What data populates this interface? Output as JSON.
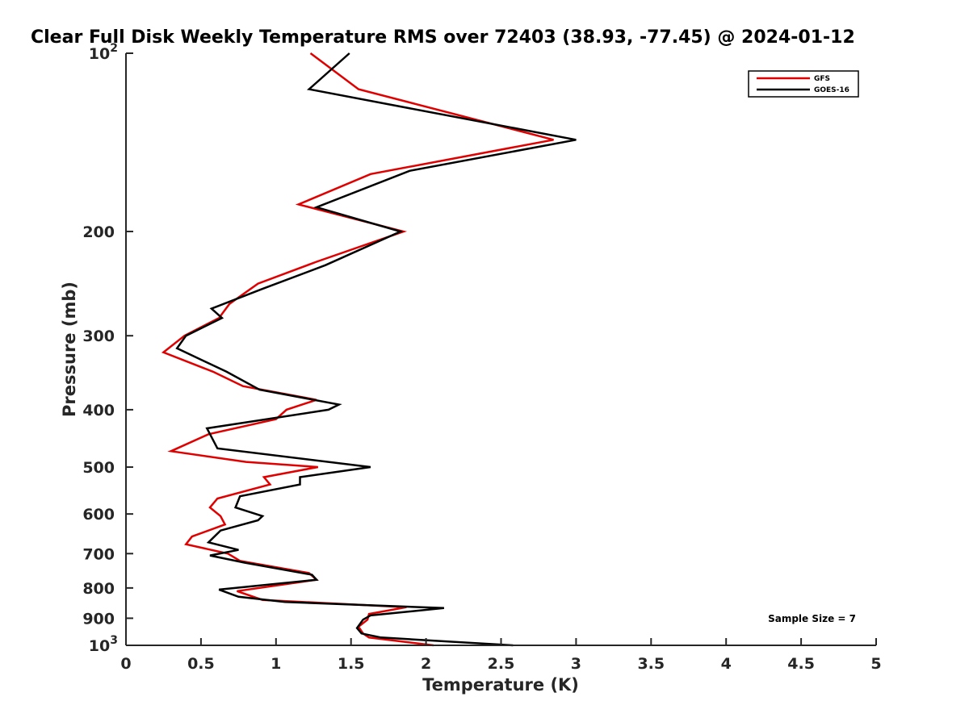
{
  "chart_data": {
    "type": "line",
    "title": "Clear Full Disk Weekly Temperature RMS over 72403 (38.93, -77.45) @ 2024-01-12",
    "xlabel": "Temperature (K)",
    "ylabel": "Pressure (mb)",
    "xlim": [
      0,
      5
    ],
    "ylim": [
      100,
      1000
    ],
    "y_scale": "log",
    "y_reversed": true,
    "grid": false,
    "legend_position": "top-right",
    "x_ticks": [
      {
        "value": 0,
        "label": "0"
      },
      {
        "value": 0.5,
        "label": "0.5"
      },
      {
        "value": 1,
        "label": "1"
      },
      {
        "value": 1.5,
        "label": "1.5"
      },
      {
        "value": 2,
        "label": "2"
      },
      {
        "value": 2.5,
        "label": "2.5"
      },
      {
        "value": 3,
        "label": "3"
      },
      {
        "value": 3.5,
        "label": "3.5"
      },
      {
        "value": 4,
        "label": "4"
      },
      {
        "value": 4.5,
        "label": "4.5"
      },
      {
        "value": 5,
        "label": "5"
      }
    ],
    "y_ticks": [
      {
        "value": 100,
        "base": "10",
        "exp": "2"
      },
      {
        "value": 200,
        "label": "200"
      },
      {
        "value": 300,
        "label": "300"
      },
      {
        "value": 400,
        "label": "400"
      },
      {
        "value": 500,
        "label": "500"
      },
      {
        "value": 600,
        "label": "600"
      },
      {
        "value": 700,
        "label": "700"
      },
      {
        "value": 800,
        "label": "800"
      },
      {
        "value": 900,
        "label": "900"
      },
      {
        "value": 1000,
        "base": "10",
        "exp": "3"
      }
    ],
    "series": [
      {
        "name": "GFS",
        "color": "#e00000",
        "points": [
          [
            1.23,
            100
          ],
          [
            1.55,
            115
          ],
          [
            2.85,
            140
          ],
          [
            1.63,
            160
          ],
          [
            1.15,
            180
          ],
          [
            1.85,
            200
          ],
          [
            1.27,
            225
          ],
          [
            0.88,
            245
          ],
          [
            0.69,
            265
          ],
          [
            0.62,
            280
          ],
          [
            0.39,
            300
          ],
          [
            0.25,
            320
          ],
          [
            0.58,
            345
          ],
          [
            0.78,
            365
          ],
          [
            1.27,
            385
          ],
          [
            1.07,
            400
          ],
          [
            1.0,
            415
          ],
          [
            0.55,
            440
          ],
          [
            0.3,
            470
          ],
          [
            0.8,
            490
          ],
          [
            1.28,
            500
          ],
          [
            0.92,
            520
          ],
          [
            0.96,
            535
          ],
          [
            0.61,
            565
          ],
          [
            0.56,
            585
          ],
          [
            0.63,
            605
          ],
          [
            0.66,
            625
          ],
          [
            0.44,
            655
          ],
          [
            0.4,
            675
          ],
          [
            0.68,
            700
          ],
          [
            0.76,
            720
          ],
          [
            1.22,
            755
          ],
          [
            1.27,
            775
          ],
          [
            0.74,
            810
          ],
          [
            0.91,
            838
          ],
          [
            1.87,
            862
          ],
          [
            1.62,
            885
          ],
          [
            1.61,
            905
          ],
          [
            1.55,
            930
          ],
          [
            1.58,
            955
          ],
          [
            1.62,
            970
          ],
          [
            2.05,
            1000
          ]
        ]
      },
      {
        "name": "GOES-16",
        "color": "#000000",
        "points": [
          [
            1.49,
            100
          ],
          [
            1.22,
            115
          ],
          [
            3.0,
            140
          ],
          [
            1.89,
            158
          ],
          [
            1.27,
            182
          ],
          [
            1.83,
            200
          ],
          [
            1.33,
            228
          ],
          [
            0.91,
            250
          ],
          [
            0.57,
            270
          ],
          [
            0.64,
            280
          ],
          [
            0.4,
            300
          ],
          [
            0.34,
            315
          ],
          [
            0.67,
            345
          ],
          [
            0.89,
            370
          ],
          [
            1.42,
            392
          ],
          [
            1.35,
            400
          ],
          [
            0.54,
            430
          ],
          [
            0.61,
            465
          ],
          [
            1.63,
            500
          ],
          [
            1.16,
            520
          ],
          [
            1.16,
            535
          ],
          [
            0.76,
            560
          ],
          [
            0.73,
            585
          ],
          [
            0.91,
            605
          ],
          [
            0.88,
            615
          ],
          [
            0.63,
            640
          ],
          [
            0.55,
            670
          ],
          [
            0.75,
            690
          ],
          [
            0.56,
            705
          ],
          [
            0.79,
            725
          ],
          [
            1.24,
            760
          ],
          [
            1.27,
            775
          ],
          [
            0.62,
            805
          ],
          [
            0.75,
            828
          ],
          [
            1.06,
            845
          ],
          [
            2.12,
            865
          ],
          [
            1.63,
            890
          ],
          [
            1.58,
            905
          ],
          [
            1.54,
            935
          ],
          [
            1.57,
            955
          ],
          [
            1.7,
            970
          ],
          [
            2.58,
            1000
          ]
        ]
      }
    ],
    "annotations": [
      {
        "text": "Sample Size = 7"
      }
    ]
  }
}
